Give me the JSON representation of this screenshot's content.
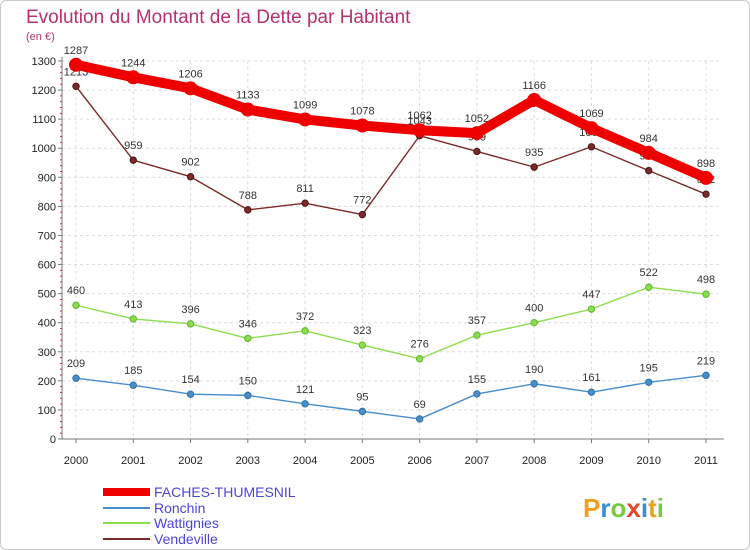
{
  "chart_data": {
    "type": "line",
    "title": "Evolution du Montant de la Dette par Habitant",
    "unit_label": "(en €)",
    "x": [
      "2000",
      "2001",
      "2002",
      "2003",
      "2004",
      "2005",
      "2006",
      "2007",
      "2008",
      "2009",
      "2010",
      "2011"
    ],
    "ylim": [
      0,
      1300
    ],
    "yticks": [
      0,
      100,
      200,
      300,
      400,
      500,
      600,
      700,
      800,
      900,
      1000,
      1100,
      1200,
      1300
    ],
    "grid": true,
    "legend_position": "bottom-left",
    "series": [
      {
        "name": "FACHES-THUMESNIL",
        "color": "#ee0000",
        "values": [
          1287,
          1244,
          1206,
          1133,
          1099,
          1078,
          1062,
          1052,
          1166,
          1069,
          984,
          898
        ]
      },
      {
        "name": "Ronchin",
        "color": "#4a8ec9",
        "values": [
          209,
          185,
          154,
          150,
          121,
          95,
          69,
          155,
          190,
          161,
          195,
          219
        ]
      },
      {
        "name": "Wattignies",
        "color": "#8edc4f",
        "values": [
          460,
          413,
          396,
          346,
          372,
          323,
          276,
          357,
          400,
          447,
          522,
          498
        ]
      },
      {
        "name": "Vendeville",
        "color": "#7a2a2a",
        "values": [
          1213,
          959,
          902,
          788,
          811,
          772,
          1043,
          989,
          935,
          1005,
          923,
          842
        ]
      }
    ]
  },
  "logo": {
    "text": "Proxiti"
  }
}
